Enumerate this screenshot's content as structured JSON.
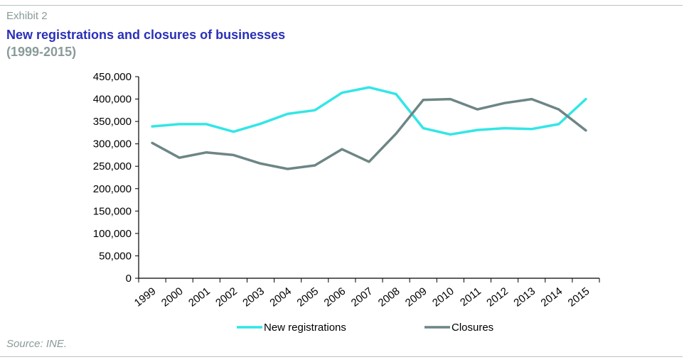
{
  "header": {
    "exhibit": "Exhibit 2",
    "title": "New registrations and closures of businesses",
    "subtitle": "(1999-2015)"
  },
  "footer": {
    "source": "Source: INE."
  },
  "chart_data": {
    "type": "line",
    "title": "New registrations and closures of businesses",
    "subtitle": "(1999-2015)",
    "xlabel": "",
    "ylabel": "",
    "categories": [
      "1999",
      "2000",
      "2001",
      "2002",
      "2003",
      "2004",
      "2005",
      "2006",
      "2007",
      "2008",
      "2009",
      "2010",
      "2011",
      "2012",
      "2013",
      "2014",
      "2015"
    ],
    "ylim": [
      0,
      450000
    ],
    "yticks": [
      0,
      50000,
      100000,
      150000,
      200000,
      250000,
      300000,
      350000,
      400000,
      450000
    ],
    "ytick_labels": [
      "0",
      "50,000",
      "100,000",
      "150,000",
      "200,000",
      "250,000",
      "300,000",
      "350,000",
      "400,000",
      "450,000"
    ],
    "grid": false,
    "legend_position": "bottom",
    "series": [
      {
        "name": "New registrations",
        "color": "#33e6e6",
        "values": [
          339000,
          344000,
          344000,
          327000,
          345000,
          367000,
          375000,
          414000,
          426000,
          411000,
          335000,
          321000,
          331000,
          335000,
          333000,
          344000,
          400000
        ]
      },
      {
        "name": "Closures",
        "color": "#6d8585",
        "values": [
          302000,
          269000,
          281000,
          275000,
          256000,
          244000,
          252000,
          288000,
          260000,
          323000,
          398000,
          400000,
          377000,
          391000,
          400000,
          377000,
          330000
        ]
      }
    ]
  }
}
